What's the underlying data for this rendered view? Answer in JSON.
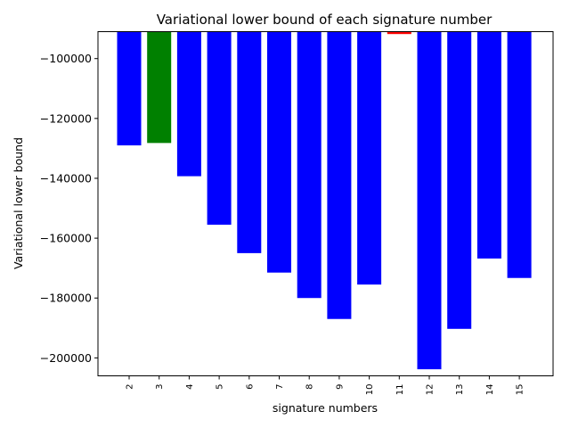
{
  "chart_data": {
    "type": "bar",
    "title": "Variational lower bound of each signature number",
    "xlabel": "signature numbers",
    "ylabel": "Variational lower bound",
    "categories": [
      "2",
      "3",
      "4",
      "5",
      "6",
      "7",
      "8",
      "9",
      "10",
      "11",
      "12",
      "13",
      "14",
      "15"
    ],
    "values": [
      -129000,
      -128200,
      -139300,
      -155500,
      -165000,
      -171500,
      -180000,
      -187000,
      -175500,
      -91800,
      -203800,
      -190300,
      -166800,
      -173300
    ],
    "bar_colors": [
      "#0000ff",
      "#008000",
      "#0000ff",
      "#0000ff",
      "#0000ff",
      "#0000ff",
      "#0000ff",
      "#0000ff",
      "#0000ff",
      "#ff0000",
      "#0000ff",
      "#0000ff",
      "#0000ff",
      "#0000ff"
    ],
    "ylim": [
      -206000,
      -91000
    ],
    "yticks": [
      -100000,
      -120000,
      -140000,
      -160000,
      -180000,
      -200000
    ],
    "ytick_labels": [
      "−100000",
      "−120000",
      "−140000",
      "−160000",
      "−180000",
      "−200000"
    ],
    "grid": false,
    "legend": "none"
  }
}
